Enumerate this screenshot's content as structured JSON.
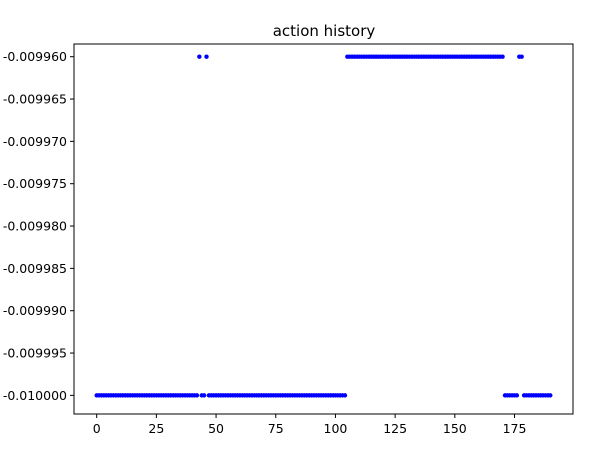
{
  "chart_data": {
    "type": "scatter",
    "title": "action history",
    "xlabel": "",
    "ylabel": "",
    "xlim": [
      -9.5,
      199.5
    ],
    "ylim": [
      -0.0100022,
      -0.0099585
    ],
    "grid": false,
    "legend": "none",
    "x_ticks": [
      {
        "value": 0,
        "label": "0"
      },
      {
        "value": 25,
        "label": "25"
      },
      {
        "value": 50,
        "label": "50"
      },
      {
        "value": 75,
        "label": "75"
      },
      {
        "value": 100,
        "label": "100"
      },
      {
        "value": 125,
        "label": "125"
      },
      {
        "value": 150,
        "label": "150"
      },
      {
        "value": 175,
        "label": "175"
      }
    ],
    "y_ticks": [
      {
        "value": -0.00996,
        "label": "-0.009960"
      },
      {
        "value": -0.009965,
        "label": "-0.009965"
      },
      {
        "value": -0.00997,
        "label": "-0.009970"
      },
      {
        "value": -0.009975,
        "label": "-0.009975"
      },
      {
        "value": -0.00998,
        "label": "-0.009980"
      },
      {
        "value": -0.009985,
        "label": "-0.009985"
      },
      {
        "value": -0.00999,
        "label": "-0.009990"
      },
      {
        "value": -0.009995,
        "label": "-0.009995"
      },
      {
        "value": -0.01,
        "label": "-0.010000"
      }
    ],
    "series": [
      {
        "color": "#0000ff",
        "segments": [
          {
            "x_start": 0,
            "x_end": 42,
            "y": -0.01
          },
          {
            "x_start": 43,
            "x_end": 43,
            "y": -0.00996
          },
          {
            "x_start": 44,
            "x_end": 45,
            "y": -0.01
          },
          {
            "x_start": 46,
            "x_end": 46,
            "y": -0.00996
          },
          {
            "x_start": 47,
            "x_end": 104,
            "y": -0.01
          },
          {
            "x_start": 105,
            "x_end": 170,
            "y": -0.00996
          },
          {
            "x_start": 171,
            "x_end": 176,
            "y": -0.01
          },
          {
            "x_start": 177,
            "x_end": 178,
            "y": -0.00996
          },
          {
            "x_start": 179,
            "x_end": 190,
            "y": -0.01
          }
        ]
      }
    ]
  }
}
